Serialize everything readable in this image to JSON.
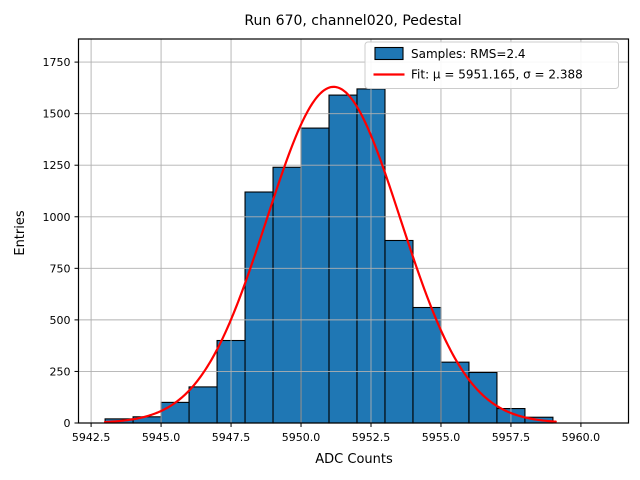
{
  "title": "Run 670, channel020, Pedestal",
  "chart_data": {
    "type": "bar",
    "subtype": "histogram-with-gaussian-fit",
    "title": "Run 670, channel020, Pedestal",
    "xlabel": "ADC Counts",
    "ylabel": "Entries",
    "xlim": [
      5942.05,
      5961.7
    ],
    "ylim": [
      0,
      1862
    ],
    "x_ticks": [
      5942.5,
      5945.0,
      5947.5,
      5950.0,
      5952.5,
      5955.0,
      5957.5,
      5960.0
    ],
    "x_tick_decimals": 1,
    "y_ticks": [
      0,
      250,
      500,
      750,
      1000,
      1250,
      1500,
      1750
    ],
    "grid": true,
    "grid_color": "#b0b0b0",
    "bar_color": "#1f77b4",
    "bar_edge_color": "#000000",
    "bins": {
      "start": 5943,
      "width": 1,
      "edges": [
        5943,
        5944,
        5945,
        5946,
        5947,
        5948,
        5949,
        5950,
        5951,
        5952,
        5953,
        5954,
        5955,
        5956,
        5957,
        5958,
        5959
      ],
      "counts": [
        20,
        30,
        100,
        175,
        400,
        1120,
        1240,
        1430,
        1590,
        1620,
        885,
        560,
        295,
        245,
        70,
        28
      ]
    },
    "fit": {
      "type": "gaussian",
      "mu": 5951.165,
      "sigma": 2.388,
      "amplitude": 1630,
      "x_range": [
        5943.0,
        5959.1
      ],
      "color": "#ff0000"
    },
    "legend": {
      "position": "upper right",
      "entries": [
        {
          "label": "Samples: RMS=2.4",
          "marker": "patch",
          "color": "#1f77b4"
        },
        {
          "label": "Fit: μ = 5951.165, σ = 2.388",
          "marker": "line",
          "color": "#ff0000"
        }
      ]
    }
  }
}
